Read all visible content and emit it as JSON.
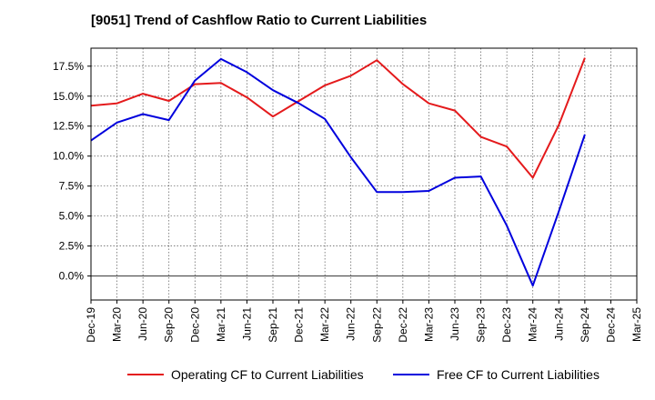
{
  "chart_data": {
    "type": "line",
    "title": "[9051]  Trend of Cashflow Ratio to Current Liabilities",
    "xlabel": "",
    "ylabel": "",
    "x": [
      "Dec-19",
      "Mar-20",
      "Jun-20",
      "Sep-20",
      "Dec-20",
      "Mar-21",
      "Jun-21",
      "Sep-21",
      "Dec-21",
      "Mar-22",
      "Jun-22",
      "Sep-22",
      "Dec-22",
      "Mar-23",
      "Jun-23",
      "Sep-23",
      "Dec-23",
      "Mar-24",
      "Jun-24",
      "Sep-24",
      "Dec-24",
      "Mar-25"
    ],
    "ylim": [
      -2.0,
      19.0
    ],
    "yticks": [
      0.0,
      2.5,
      5.0,
      7.5,
      10.0,
      12.5,
      15.0,
      17.5
    ],
    "ytick_labels": [
      "0.0%",
      "2.5%",
      "5.0%",
      "7.5%",
      "10.0%",
      "12.5%",
      "15.0%",
      "17.5%"
    ],
    "grid": true,
    "legend_position": "bottom",
    "series": [
      {
        "name": "Operating CF to Current Liabilities",
        "color": "#e41a1c",
        "values": [
          14.2,
          14.4,
          15.2,
          14.6,
          16.0,
          16.1,
          14.9,
          13.3,
          14.6,
          15.9,
          16.7,
          18.0,
          16.0,
          14.4,
          13.8,
          11.6,
          10.8,
          8.2,
          12.6,
          18.2,
          null,
          null
        ]
      },
      {
        "name": "Free CF to Current Liabilities",
        "color": "#0000dd",
        "values": [
          11.3,
          12.8,
          13.5,
          13.0,
          16.3,
          18.1,
          17.0,
          15.5,
          14.4,
          13.1,
          9.9,
          7.0,
          7.0,
          7.1,
          8.2,
          8.3,
          4.2,
          -0.8,
          5.4,
          11.8,
          null,
          null
        ]
      }
    ]
  }
}
